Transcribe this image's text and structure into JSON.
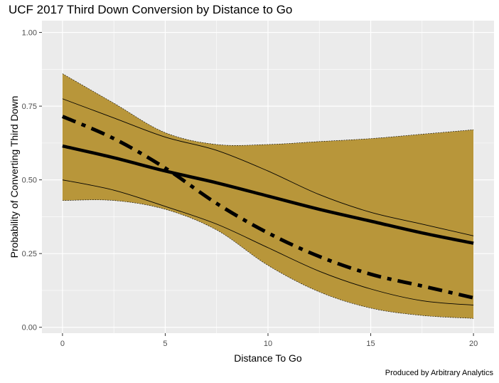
{
  "chart_data": {
    "type": "line",
    "title": "UCF 2017 Third Down Conversion by Distance to Go",
    "xlabel": "Distance To Go",
    "ylabel": "Probability of Converting Third Down",
    "caption": "Produced by Arbitrary Analytics",
    "xlim": [
      -1,
      21
    ],
    "ylim": [
      -0.02,
      1.04
    ],
    "x_ticks": [
      "0",
      "5",
      "10",
      "15",
      "20"
    ],
    "y_ticks": [
      "0.00",
      "0.25",
      "0.50",
      "0.75",
      "1.00"
    ],
    "grid": true,
    "x": [
      0,
      2.5,
      5,
      7.5,
      10,
      12.5,
      15,
      17.5,
      20
    ],
    "ribbon": {
      "color": "#B8963A",
      "upper": [
        0.86,
        0.76,
        0.66,
        0.62,
        0.62,
        0.63,
        0.64,
        0.655,
        0.67
      ],
      "lower": [
        0.43,
        0.43,
        0.4,
        0.33,
        0.21,
        0.12,
        0.065,
        0.04,
        0.03
      ]
    },
    "series": [
      {
        "values": [
          0.615,
          0.575,
          0.53,
          0.49,
          0.445,
          0.4,
          0.36,
          0.32,
          0.285
        ],
        "style": "solid-thick"
      },
      {
        "values": [
          0.715,
          0.64,
          0.54,
          0.42,
          0.32,
          0.24,
          0.18,
          0.14,
          0.1
        ],
        "style": "dashdot-thick"
      },
      {
        "values": [
          0.775,
          0.71,
          0.645,
          0.6,
          0.53,
          0.45,
          0.39,
          0.35,
          0.31
        ],
        "style": "solid-thin"
      },
      {
        "values": [
          0.5,
          0.465,
          0.41,
          0.35,
          0.27,
          0.19,
          0.13,
          0.09,
          0.075
        ],
        "style": "solid-thin"
      }
    ]
  }
}
